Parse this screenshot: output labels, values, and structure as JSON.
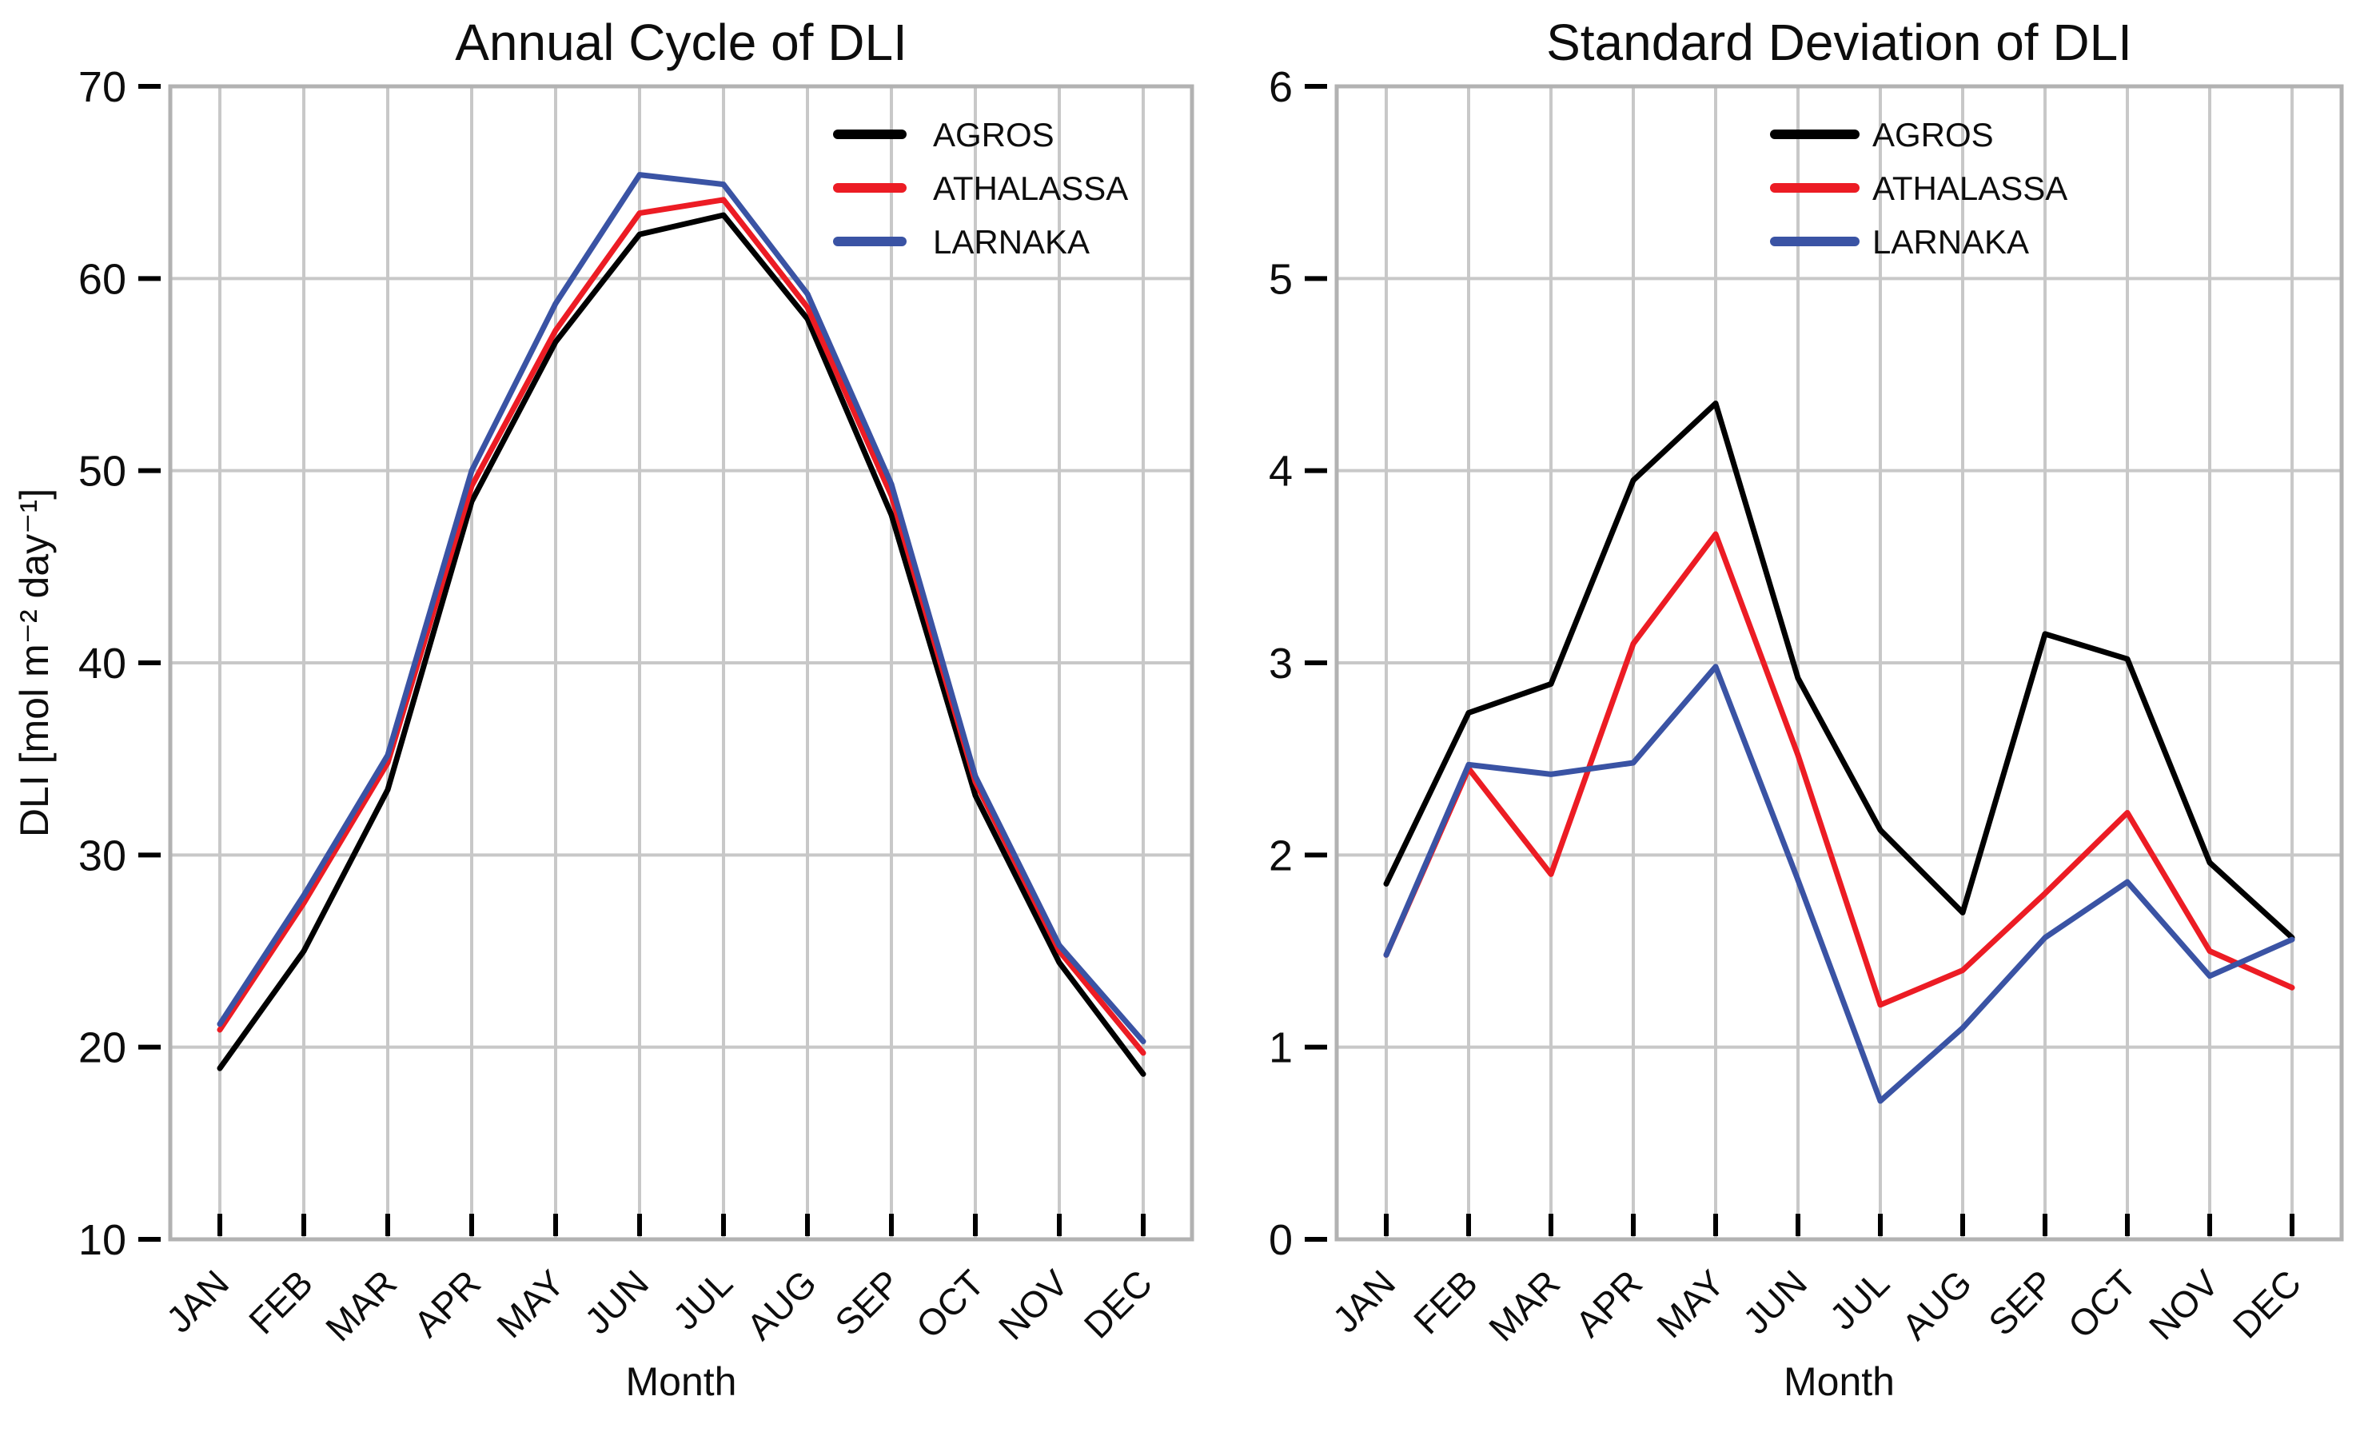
{
  "figure": {
    "background": "#ffffff",
    "grid_color": "#c8c8c8",
    "box_color": "#b2b2b2",
    "tick_color": "#000000"
  },
  "chart_data": [
    {
      "type": "line",
      "title": "Annual Cycle of DLI",
      "xlabel": "Month",
      "ylabel": "DLI [mol m⁻² day⁻¹]",
      "categories": [
        "JAN",
        "FEB",
        "MAR",
        "APR",
        "MAY",
        "JUN",
        "JUL",
        "AUG",
        "SEP",
        "OCT",
        "NOV",
        "DEC"
      ],
      "ylim": [
        10,
        70
      ],
      "yticks": [
        10,
        20,
        30,
        40,
        50,
        60,
        70
      ],
      "grid": true,
      "legend_position": "upper-right",
      "series": [
        {
          "name": "AGROS",
          "color": "#000000",
          "values": [
            18.9,
            25.0,
            33.4,
            48.4,
            56.7,
            62.3,
            63.3,
            57.9,
            47.7,
            33.1,
            24.4,
            18.6
          ]
        },
        {
          "name": "ATHALASSA",
          "color": "#ec1c24",
          "values": [
            20.9,
            27.5,
            34.8,
            49.2,
            57.3,
            63.4,
            64.1,
            58.5,
            48.7,
            33.8,
            25.0,
            19.7
          ]
        },
        {
          "name": "LARNAKA",
          "color": "#3a53a4",
          "values": [
            21.2,
            27.9,
            35.2,
            50.0,
            58.7,
            65.4,
            64.9,
            59.2,
            49.3,
            34.1,
            25.3,
            20.3
          ]
        }
      ]
    },
    {
      "type": "line",
      "title": "Standard Deviation of DLI",
      "xlabel": "Month",
      "ylabel": "",
      "categories": [
        "JAN",
        "FEB",
        "MAR",
        "APR",
        "MAY",
        "JUN",
        "JUL",
        "AUG",
        "SEP",
        "OCT",
        "NOV",
        "DEC"
      ],
      "ylim": [
        0,
        6
      ],
      "yticks": [
        0,
        1,
        2,
        3,
        4,
        5,
        6
      ],
      "grid": true,
      "legend_position": "upper-right",
      "series": [
        {
          "name": "AGROS",
          "color": "#000000",
          "values": [
            1.85,
            2.74,
            2.89,
            3.95,
            4.35,
            2.92,
            2.13,
            1.7,
            3.15,
            3.02,
            1.96,
            1.57
          ]
        },
        {
          "name": "ATHALASSA",
          "color": "#ec1c24",
          "values": [
            1.48,
            2.45,
            1.9,
            3.1,
            3.67,
            2.52,
            1.22,
            1.4,
            1.8,
            2.22,
            1.5,
            1.31
          ]
        },
        {
          "name": "LARNAKA",
          "color": "#3a53a4",
          "values": [
            1.48,
            2.47,
            2.42,
            2.48,
            2.98,
            1.87,
            0.72,
            1.1,
            1.57,
            1.86,
            1.37,
            1.56
          ]
        }
      ]
    }
  ]
}
